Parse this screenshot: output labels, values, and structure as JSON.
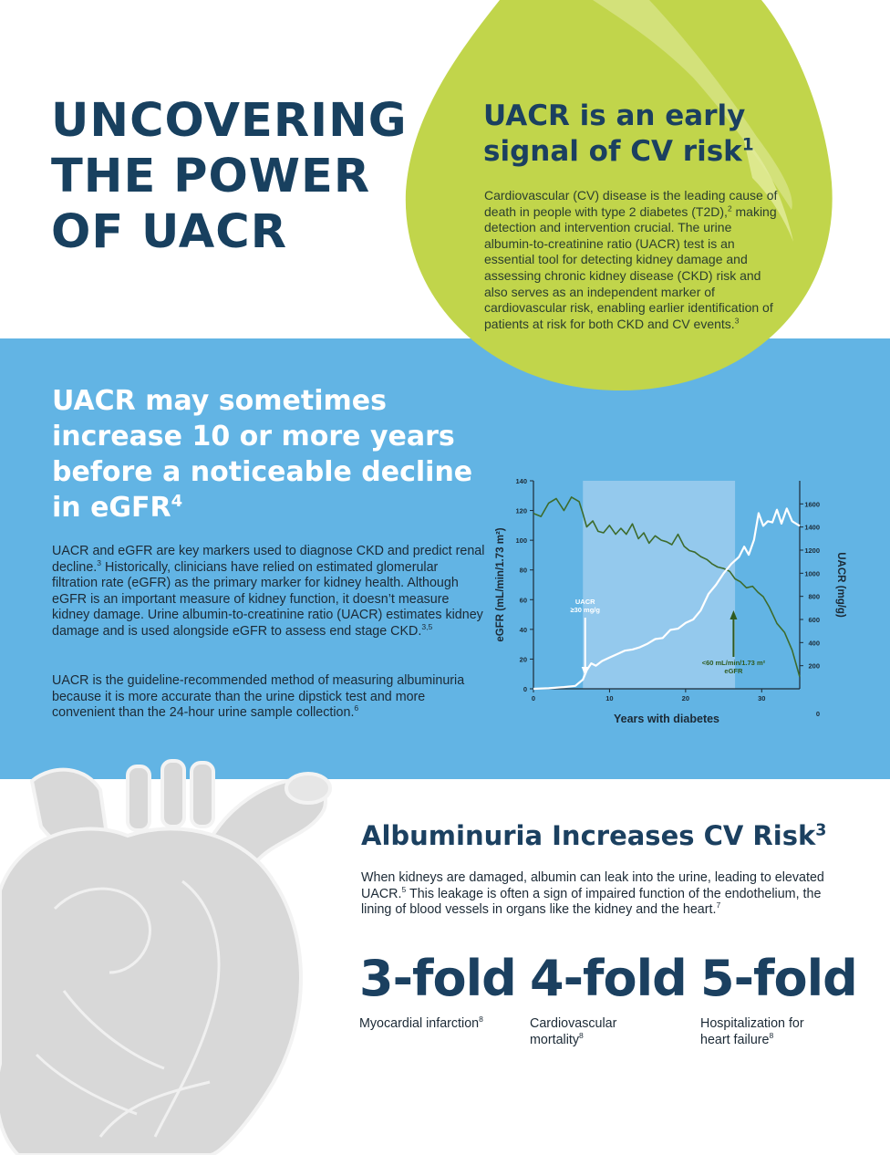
{
  "header": {
    "title_lines": [
      "UNCOVERING",
      "THE POWER",
      "OF UACR"
    ]
  },
  "drop": {
    "heading_lines": [
      "UACR is an early",
      "signal of CV risk"
    ],
    "heading_sup": "1",
    "body": [
      "Cardiovascular (CV) disease is the leading cause of death in people with type 2 diabetes (T2D),",
      "2",
      " making detection and intervention crucial. The urine albumin-to-creatinine ratio (UACR) test is an essential tool for detecting kidney damage and assessing chronic kidney disease (CKD) risk and also serves as an independent marker of cardiovascular risk, enabling earlier identification of patients at risk for both CKD and CV events.",
      "3"
    ]
  },
  "blue_section": {
    "heading": "UACR may sometimes increase 10 or more years before a noticeable decline in eGFR",
    "heading_sup": "4",
    "para1": [
      "UACR and eGFR are key markers used to diagnose CKD and predict renal decline.",
      "3",
      " Historically, clinicians have relied on estimated glomerular filtration rate (eGFR) as the primary marker for kidney health. Although eGFR is an important measure of kidney function, it doesn’t measure kidney damage. Urine albumin-to-creatinine ratio (UACR) estimates kidney damage and is used alongside eGFR to assess end stage CKD.",
      "3,5"
    ],
    "para2": [
      "UACR is the guideline-recommended method of measuring albuminuria because it is more accurate than the urine dipstick test and more convenient than the 24-hour urine sample collection.",
      "6"
    ]
  },
  "chart_data": {
    "type": "line",
    "title": "",
    "xlabel": "Years with diabetes",
    "ylabel_left": "eGFR (mL/min/1.73 m²)",
    "ylabel_right": "UACR (mg/g)",
    "xlim": [
      0,
      35
    ],
    "ylim_left": [
      0,
      140
    ],
    "ylim_right": [
      0,
      1800
    ],
    "x_ticks": [
      0,
      10,
      20,
      30
    ],
    "y_ticks_left": [
      0,
      20,
      40,
      60,
      80,
      100,
      120,
      140
    ],
    "y_ticks_right": [
      0,
      200,
      400,
      600,
      800,
      1000,
      1200,
      1400,
      1600
    ],
    "highlight_x_range": [
      6.5,
      26.5
    ],
    "series": [
      {
        "axis": "left",
        "color": "#3d6b2c",
        "x": [
          0,
          1,
          2,
          3,
          4,
          5,
          6,
          6.5,
          7,
          7.8,
          8.5,
          9.2,
          10,
          10.8,
          11.5,
          12.2,
          13,
          13.8,
          14.5,
          15.2,
          16,
          16.8,
          17.5,
          18.2,
          19,
          19.8,
          20.5,
          21.2,
          22,
          22.8,
          23.5,
          24.2,
          25,
          25.8,
          26.5,
          27.2,
          28,
          28.8,
          29.5,
          30.2,
          31,
          32,
          33,
          34,
          35
        ],
        "y": [
          118,
          116,
          125,
          128,
          120,
          129,
          126,
          118,
          109,
          113,
          106,
          105,
          110,
          104,
          108,
          104,
          111,
          101,
          105,
          98,
          103,
          100,
          99,
          97,
          104,
          96,
          93,
          92,
          89,
          87,
          84,
          82,
          81,
          79,
          74,
          72,
          68,
          69,
          65,
          62,
          55,
          44,
          38,
          26,
          8
        ]
      },
      {
        "axis": "right",
        "color": "#ffffff",
        "x": [
          0,
          2,
          4,
          5.5,
          6.5,
          7,
          7.6,
          8.2,
          9,
          10,
          11,
          12,
          13,
          14,
          15,
          16,
          17,
          18,
          19,
          20,
          21,
          22,
          23,
          24,
          25,
          26,
          27,
          27.7,
          28.3,
          29,
          29.6,
          30.2,
          30.8,
          31.4,
          32,
          32.6,
          33.3,
          34,
          35
        ],
        "y": [
          0,
          5,
          15,
          25,
          80,
          160,
          220,
          200,
          240,
          270,
          300,
          330,
          340,
          360,
          390,
          430,
          440,
          510,
          520,
          570,
          600,
          680,
          820,
          900,
          1000,
          1080,
          1140,
          1230,
          1160,
          1290,
          1520,
          1410,
          1450,
          1440,
          1550,
          1430,
          1560,
          1450,
          1410
        ]
      }
    ],
    "annotations": [
      {
        "text_lines": [
          "UACR",
          "≥30 mg/g"
        ],
        "color": "#ffffff"
      },
      {
        "text_lines": [
          "<60 mL/min/1.73 m²",
          "eGFR"
        ],
        "color": "#2f5a1e"
      }
    ],
    "right_axis_extra_label": "0"
  },
  "albuminuria": {
    "heading": "Albuminuria Increases CV Risk",
    "heading_sup": "3",
    "body": [
      "When kidneys are damaged, albumin can leak into the urine, leading to elevated UACR.",
      "5",
      " This leakage is often a sign of impaired function of the endothelium, the lining of blood vessels in organs like the kidney and the heart.",
      "7"
    ],
    "stats": [
      {
        "value": "3-fold",
        "label": "Myocardial infarction",
        "sup": "8"
      },
      {
        "value": "4-fold",
        "label": "Cardiovascular mortality",
        "sup": "8"
      },
      {
        "value": "5-fold",
        "label": "Hospitalization for heart failure",
        "sup": "8"
      }
    ]
  },
  "colors": {
    "navy": "#1b4060",
    "blue_band": "#62b4e4",
    "drop_green": "#c1d54b",
    "egfr_green": "#3d6b2c",
    "heart_gray": "#d6d6d6"
  }
}
